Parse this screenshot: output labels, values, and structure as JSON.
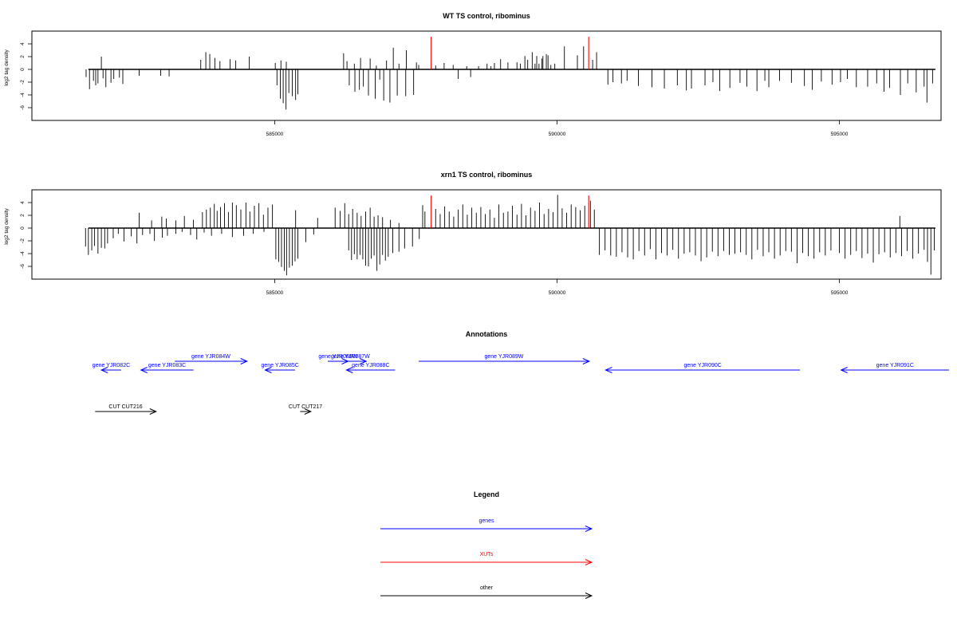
{
  "colors": {
    "genes": "#0000ff",
    "XUTs": "#ff0000",
    "other": "#000000",
    "bars": "#000000"
  },
  "chart_data": [
    {
      "type": "bar",
      "title": "WT TS control, ribominus",
      "ylabel": "log2 tag density",
      "xlim": [
        580700,
        596800
      ],
      "ylim": [
        -8,
        6
      ],
      "x_ticks": [
        585000,
        590000,
        595000
      ],
      "x_tick_labels": [
        "585000",
        "590000",
        "595000"
      ],
      "y_ticks": [
        -6,
        -4,
        -2,
        0,
        2,
        4
      ],
      "y_tick_labels": [
        "-6",
        "-4",
        "-2",
        "0",
        "2",
        "4"
      ],
      "baseline": {
        "x": [
          581700,
          596700
        ],
        "y": 0
      },
      "series": [
        {
          "strand": "+",
          "color": "#000000",
          "x": [
            581930,
            583690,
            583780,
            583850,
            583940,
            584030,
            584210,
            584310,
            584550,
            585010,
            585110,
            585205,
            586220,
            586280,
            586410,
            586520,
            586690,
            586800,
            586980,
            587100,
            587200,
            587330,
            587510,
            587550,
            587850,
            588000,
            588160,
            588400,
            588610,
            588760,
            588830,
            588890,
            589000,
            589130,
            589290,
            589350,
            589430,
            589480,
            589560,
            589610,
            589640,
            589680,
            589730,
            589750,
            589810,
            589840,
            589890,
            589960,
            590130,
            590360,
            590470,
            590630,
            590700
          ],
          "values": [
            2.0,
            1.5,
            2.7,
            2.4,
            1.8,
            1.3,
            1.6,
            1.4,
            2.0,
            1.0,
            1.4,
            1.2,
            2.5,
            1.3,
            0.9,
            1.8,
            1.7,
            0.6,
            1.4,
            3.4,
            0.9,
            3.0,
            1.1,
            0.7,
            0.6,
            1.0,
            0.7,
            0.5,
            0.5,
            0.9,
            0.5,
            1.0,
            1.6,
            1.1,
            1.1,
            0.9,
            2.1,
            1.5,
            2.7,
            0.9,
            2.1,
            0.9,
            1.7,
            2.1,
            2.4,
            2.2,
            0.7,
            0.9,
            3.6,
            2.2,
            3.6,
            1.5,
            2.7
          ]
        },
        {
          "strand": "-",
          "color": "#000000",
          "x": [
            581660,
            581720,
            581790,
            581830,
            581870,
            581960,
            582010,
            582100,
            582150,
            582250,
            582310,
            582600,
            582980,
            583130,
            585040,
            585100,
            585150,
            585200,
            585250,
            585310,
            585370,
            585410,
            586320,
            586420,
            586500,
            586570,
            586660,
            586780,
            586860,
            586930,
            587040,
            587170,
            587320,
            587460,
            588250,
            588470,
            590900,
            590990,
            591140,
            591240,
            591440,
            591680,
            591900,
            592130,
            592290,
            592380,
            592620,
            592760,
            592880,
            593060,
            593240,
            593360,
            593540,
            593680,
            593750,
            593940,
            594150,
            594380,
            594520,
            594680,
            594870,
            595020,
            595140,
            595300,
            595500,
            595660,
            595790,
            595890,
            596080,
            596210,
            596360,
            596500,
            596550,
            596650
          ],
          "values": [
            -1.2,
            -3.1,
            -1.8,
            -2.5,
            -2.2,
            -1.4,
            -2.8,
            -2.1,
            -1.5,
            -1.3,
            -2.3,
            -1.0,
            -1.0,
            -1.1,
            -2.5,
            -4.6,
            -5.3,
            -6.3,
            -3.7,
            -4.2,
            -4.8,
            -3.9,
            -2.5,
            -3.5,
            -3.2,
            -2.7,
            -4.1,
            -4.6,
            -1.6,
            -4.9,
            -5.2,
            -4.1,
            -4.2,
            -4.0,
            -1.5,
            -1.2,
            -2.4,
            -2.0,
            -2.2,
            -1.8,
            -2.6,
            -2.8,
            -3.0,
            -2.5,
            -3.3,
            -3.0,
            -2.5,
            -2.0,
            -3.4,
            -2.9,
            -2.1,
            -2.7,
            -3.4,
            -1.8,
            -2.8,
            -1.8,
            -2.1,
            -2.6,
            -3.2,
            -1.9,
            -2.4,
            -2.0,
            -1.5,
            -2.8,
            -2.7,
            -2.2,
            -3.5,
            -2.9,
            -4.0,
            -2.2,
            -3.6,
            -2.7,
            -5.2,
            -2.2
          ]
        },
        {
          "strand": "+",
          "name": "XUTs",
          "color": "#ff0000",
          "x": [
            587770,
            590560
          ],
          "values": [
            5.1,
            5.1
          ]
        }
      ]
    },
    {
      "type": "bar",
      "title": "xrn1 TS control, ribominus",
      "ylabel": "log2 tag density",
      "xlim": [
        580700,
        596800
      ],
      "ylim": [
        -8,
        6
      ],
      "x_ticks": [
        585000,
        590000,
        595000
      ],
      "x_tick_labels": [
        "585000",
        "590000",
        "595000"
      ],
      "y_ticks": [
        -6,
        -4,
        -2,
        0,
        2,
        4
      ],
      "y_tick_labels": [
        "-6",
        "-4",
        "-2",
        "0",
        "2",
        "4"
      ],
      "baseline": {
        "x": [
          581700,
          596700
        ],
        "y": 0
      },
      "series": [
        {
          "strand": "+",
          "color": "#000000",
          "x": [
            582600,
            582820,
            583000,
            583080,
            583250,
            583400,
            583560,
            583720,
            583790,
            583860,
            583930,
            583980,
            584040,
            584110,
            584180,
            584250,
            584320,
            584400,
            584490,
            584560,
            584640,
            584720,
            584800,
            584880,
            584960,
            585370,
            585760,
            586070,
            586160,
            586240,
            586310,
            586380,
            586460,
            586530,
            586610,
            586690,
            586760,
            586830,
            586910,
            587050,
            587200,
            587620,
            587660,
            587850,
            587930,
            588010,
            588090,
            588170,
            588250,
            588330,
            588410,
            588490,
            588570,
            588650,
            588730,
            588810,
            588890,
            588970,
            589050,
            589130,
            589210,
            589290,
            589370,
            589450,
            589530,
            589610,
            589690,
            589770,
            589850,
            589930,
            590010,
            590090,
            590170,
            590250,
            590330,
            590410,
            590490,
            590590,
            590660,
            596070
          ],
          "values": [
            2.4,
            1.2,
            1.8,
            1.5,
            1.2,
            1.9,
            1.3,
            2.5,
            2.9,
            3.2,
            3.8,
            2.7,
            3.3,
            3.9,
            2.5,
            4.0,
            3.6,
            2.9,
            4.0,
            2.6,
            3.5,
            3.9,
            2.1,
            3.2,
            3.7,
            2.8,
            1.6,
            3.2,
            2.7,
            3.9,
            2.2,
            3.0,
            2.4,
            1.9,
            2.6,
            3.2,
            1.8,
            2.0,
            1.7,
            1.3,
            0.8,
            3.6,
            2.6,
            3.0,
            2.2,
            3.4,
            2.6,
            1.8,
            2.9,
            3.7,
            2.1,
            3.2,
            2.4,
            3.3,
            2.2,
            2.9,
            1.6,
            3.7,
            2.4,
            2.6,
            3.5,
            2.1,
            3.8,
            2.0,
            3.2,
            2.7,
            4.0,
            2.2,
            3.0,
            2.5,
            5.2,
            3.1,
            2.4,
            3.7,
            3.3,
            2.8,
            3.5,
            4.3,
            2.9,
            1.9
          ]
        },
        {
          "strand": "-",
          "color": "#000000",
          "x": [
            581650,
            581700,
            581760,
            581810,
            581870,
            581930,
            581990,
            582040,
            582140,
            582230,
            582330,
            582460,
            582560,
            582660,
            582790,
            582870,
            583010,
            583100,
            583250,
            583360,
            583510,
            583620,
            583750,
            583880,
            584060,
            584250,
            584450,
            584620,
            584810,
            585020,
            585070,
            585120,
            585170,
            585210,
            585260,
            585310,
            585360,
            585410,
            585550,
            585690,
            586310,
            586360,
            586410,
            586460,
            586510,
            586560,
            586610,
            586660,
            586710,
            586760,
            586810,
            586860,
            586910,
            586960,
            587010,
            587090,
            587200,
            587300,
            587440,
            587560,
            590750,
            590850,
            590950,
            591050,
            591150,
            591250,
            591350,
            591450,
            591550,
            591650,
            591750,
            591850,
            591950,
            592050,
            592150,
            592250,
            592350,
            592450,
            592550,
            592650,
            592750,
            592850,
            592950,
            593050,
            593150,
            593250,
            593350,
            593450,
            593550,
            593650,
            593750,
            593850,
            593950,
            594050,
            594150,
            594250,
            594350,
            594450,
            594550,
            594650,
            594750,
            594850,
            595000,
            595100,
            595200,
            595300,
            595400,
            595500,
            595600,
            595700,
            595800,
            595900,
            596000,
            596100,
            596200,
            596300,
            596400,
            596500,
            596560,
            596620,
            596680
          ],
          "values": [
            -2.9,
            -4.2,
            -3.5,
            -2.8,
            -4.0,
            -3.1,
            -3.2,
            -2.4,
            -1.6,
            -0.9,
            -2.1,
            -1.3,
            -2.4,
            -1.1,
            -0.9,
            -2.0,
            -1.5,
            -1.2,
            -0.9,
            -0.6,
            -1.1,
            -1.8,
            -0.7,
            -1.2,
            -0.9,
            -1.4,
            -1.2,
            -0.9,
            -0.6,
            -4.9,
            -5.3,
            -6.1,
            -6.7,
            -7.4,
            -6.2,
            -5.9,
            -5.2,
            -4.8,
            -2.2,
            -1.0,
            -3.5,
            -5.0,
            -4.1,
            -4.9,
            -4.2,
            -4.9,
            -5.9,
            -6.0,
            -4.8,
            -4.3,
            -6.7,
            -5.7,
            -4.2,
            -5.1,
            -4.5,
            -3.9,
            -3.7,
            -3.2,
            -2.9,
            -1.7,
            -4.2,
            -3.5,
            -4.3,
            -4.5,
            -3.8,
            -4.6,
            -4.9,
            -3.6,
            -4.3,
            -3.3,
            -4.9,
            -3.9,
            -4.3,
            -3.4,
            -4.8,
            -4.0,
            -3.8,
            -4.3,
            -5.2,
            -4.6,
            -3.7,
            -4.4,
            -3.6,
            -4.2,
            -4.0,
            -3.8,
            -4.2,
            -4.9,
            -3.4,
            -4.4,
            -3.8,
            -4.8,
            -4.3,
            -3.6,
            -3.7,
            -5.5,
            -3.9,
            -4.4,
            -4.8,
            -3.8,
            -4.3,
            -3.5,
            -3.9,
            -4.8,
            -4.2,
            -3.6,
            -4.7,
            -4.0,
            -5.4,
            -4.1,
            -3.8,
            -4.6,
            -3.9,
            -4.4,
            -3.6,
            -4.8,
            -4.0,
            -3.4,
            -5.3,
            -7.3,
            -3.5
          ]
        },
        {
          "strand": "+",
          "name": "XUTs",
          "color": "#ff0000",
          "x": [
            587770,
            590560
          ],
          "values": [
            5.1,
            5.1
          ]
        }
      ]
    }
  ],
  "annotations": {
    "title": "Annotations",
    "features": [
      {
        "label": "gene YJR082C",
        "kind": "genes",
        "strand": "-",
        "row": 2,
        "start": 581930,
        "end": 582280
      },
      {
        "label": "gene YJR083C",
        "kind": "genes",
        "strand": "-",
        "row": 2,
        "start": 582630,
        "end": 583560
      },
      {
        "label": "gene YJR084W",
        "kind": "genes",
        "strand": "+",
        "row": 1,
        "start": 583230,
        "end": 584510
      },
      {
        "label": "gene YJR085C",
        "kind": "genes",
        "strand": "-",
        "row": 2,
        "start": 584830,
        "end": 585360
      },
      {
        "label": "gene YJR086W",
        "kind": "genes",
        "strand": "+",
        "row": 1,
        "start": 585940,
        "end": 586300
      },
      {
        "label": "gene YJR087W",
        "kind": "genes",
        "strand": "+",
        "row": 1,
        "start": 586060,
        "end": 586620
      },
      {
        "label": "gene YJR088C",
        "kind": "genes",
        "strand": "-",
        "row": 2,
        "start": 586270,
        "end": 587130
      },
      {
        "label": "gene YJR089W",
        "kind": "genes",
        "strand": "+",
        "row": 1,
        "start": 587550,
        "end": 590570
      },
      {
        "label": "gene YJR090C",
        "kind": "genes",
        "strand": "-",
        "row": 2,
        "start": 590860,
        "end": 594300
      },
      {
        "label": "gene YJR091C",
        "kind": "genes",
        "strand": "-",
        "row": 2,
        "start": 595030,
        "end": 597160
      },
      {
        "label": "CUT CUT216",
        "kind": "other",
        "strand": "+",
        "row": 3,
        "start": 581820,
        "end": 582900
      },
      {
        "label": "CUT CUT217",
        "kind": "other",
        "strand": "+",
        "row": 3,
        "start": 585450,
        "end": 585640
      }
    ]
  },
  "legend": {
    "title": "Legend",
    "items": [
      {
        "label": "genes",
        "color": "#0000ff"
      },
      {
        "label": "XUTs",
        "color": "#ff0000"
      },
      {
        "label": "other",
        "color": "#000000"
      }
    ]
  }
}
